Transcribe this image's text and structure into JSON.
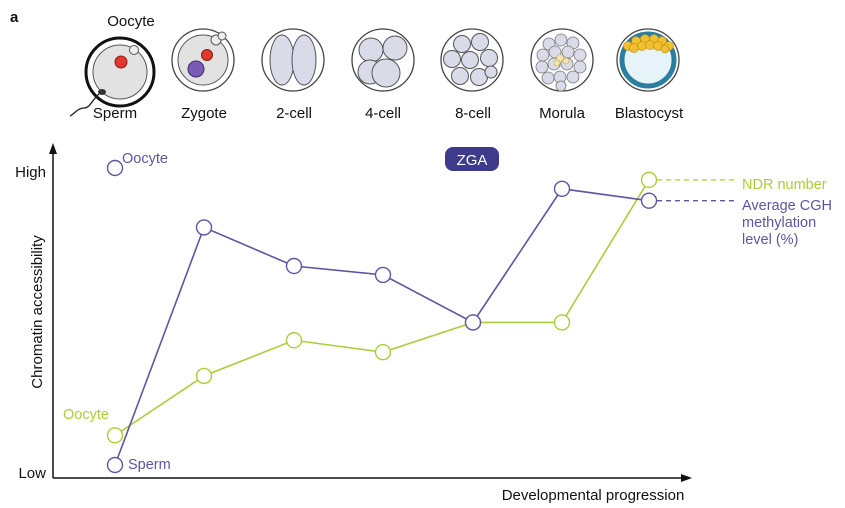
{
  "panel_label": "a",
  "stages": [
    {
      "label": "Sperm"
    },
    {
      "label": "Zygote"
    },
    {
      "label": "2-cell"
    },
    {
      "label": "4-cell"
    },
    {
      "label": "8-cell"
    },
    {
      "label": "Morula"
    },
    {
      "label": "Blastocyst"
    }
  ],
  "oocyte_cell_label": "Oocyte",
  "colors": {
    "purple": "#5b56a3",
    "green": "#a8cf3a",
    "zga_bg": "#3f3b8c",
    "cell_fill": "#e2e2e2",
    "blastomere_fill": "#d9dce8",
    "nucleus_red": "#e2372b",
    "pronucleus_purple": "#7b5ab5",
    "trophectoderm": "#2a7fa0",
    "icm": "#f0c02e"
  },
  "chart_data": {
    "type": "line",
    "title": "",
    "xlabel": "Developmental progression",
    "ylabel": "Chromatin accessibility",
    "y_ticks": [
      "High",
      "Low"
    ],
    "ylim": [
      0,
      100
    ],
    "x": [
      0,
      1,
      2,
      3,
      4,
      5,
      6
    ],
    "zga_label": "ZGA",
    "zga_position": 4,
    "series": [
      {
        "name": "Average CGH methylation level (%)",
        "color": "#5b56a3",
        "values": [
          100,
          80,
          67,
          64,
          48,
          93,
          89
        ],
        "start_point": {
          "x": 0,
          "y": 0,
          "label": "Sperm"
        },
        "oocyte_label": "Oocyte",
        "legend_lines": [
          "Average CGH",
          "methylation",
          "level (%)"
        ]
      },
      {
        "name": "NDR number",
        "color": "#a8cf3a",
        "values": [
          10,
          30,
          42,
          38,
          48,
          48,
          96
        ],
        "oocyte_label": "Oocyte",
        "legend_lines": [
          "NDR number"
        ]
      }
    ]
  }
}
